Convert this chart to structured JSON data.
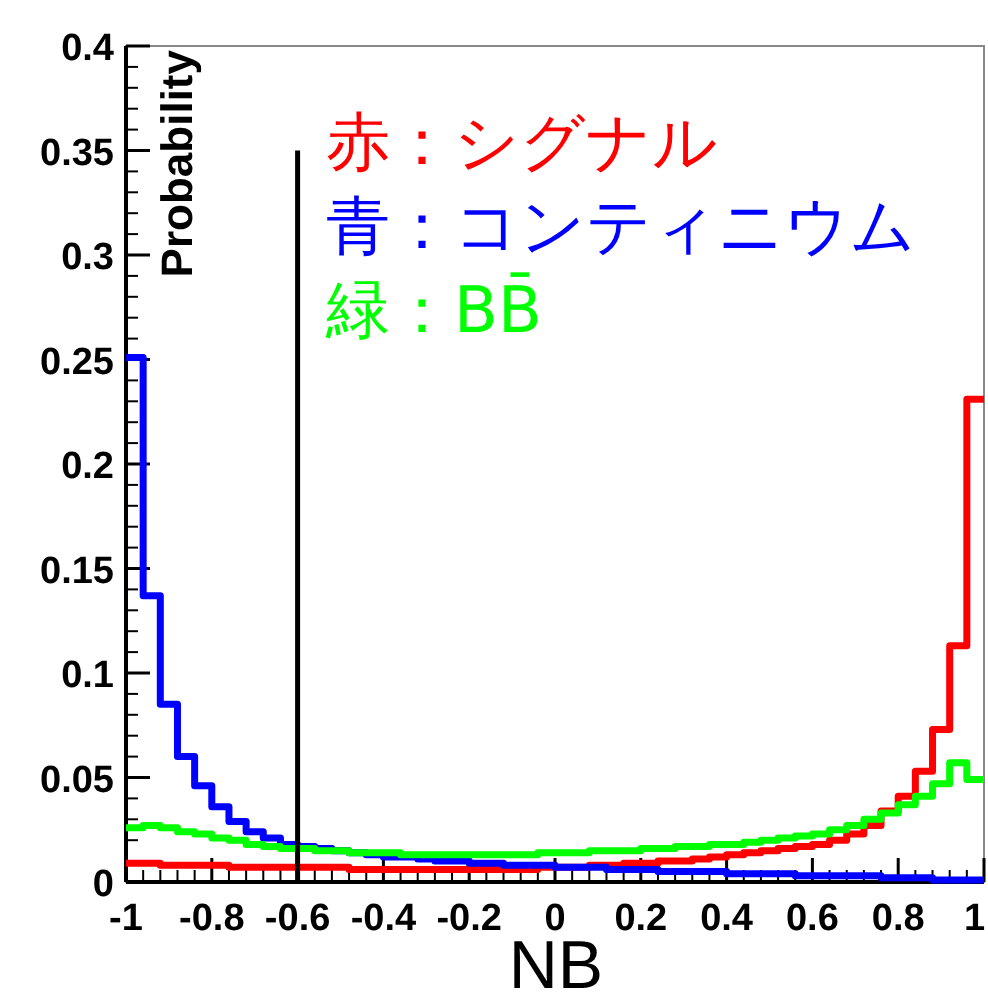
{
  "chart_data": {
    "type": "histogram",
    "xlabel": "NB",
    "ylabel": "Probability",
    "bins": [
      -1,
      -0.96,
      -0.92,
      -0.88,
      -0.84,
      -0.8,
      -0.76,
      -0.72,
      -0.68,
      -0.64,
      -0.6,
      -0.56,
      -0.52,
      -0.48,
      -0.44,
      -0.4,
      -0.36,
      -0.32,
      -0.28,
      -0.24,
      -0.2,
      -0.16,
      -0.12,
      -0.08,
      -0.04,
      0,
      0.04,
      0.08,
      0.12,
      0.16,
      0.2,
      0.24,
      0.28,
      0.32,
      0.36,
      0.4,
      0.44,
      0.48,
      0.52,
      0.56,
      0.6,
      0.64,
      0.68,
      0.72,
      0.76,
      0.8,
      0.84,
      0.88,
      0.92,
      0.96,
      1
    ],
    "series": [
      {
        "name": "赤：シグナル",
        "color": "#ff0000",
        "values": [
          0.009,
          0.009,
          0.008,
          0.008,
          0.008,
          0.008,
          0.007,
          0.007,
          0.007,
          0.007,
          0.007,
          0.007,
          0.007,
          0.006,
          0.006,
          0.006,
          0.006,
          0.006,
          0.006,
          0.006,
          0.006,
          0.006,
          0.006,
          0.006,
          0.007,
          0.007,
          0.007,
          0.008,
          0.008,
          0.009,
          0.009,
          0.01,
          0.01,
          0.011,
          0.012,
          0.013,
          0.014,
          0.015,
          0.016,
          0.017,
          0.018,
          0.02,
          0.023,
          0.027,
          0.034,
          0.041,
          0.053,
          0.073,
          0.113,
          0.231
        ]
      },
      {
        "name": "青：コンティニウム",
        "color": "#0000ff",
        "values": [
          0.251,
          0.137,
          0.085,
          0.06,
          0.046,
          0.036,
          0.029,
          0.024,
          0.021,
          0.018,
          0.017,
          0.016,
          0.015,
          0.014,
          0.013,
          0.012,
          0.012,
          0.011,
          0.01,
          0.01,
          0.009,
          0.009,
          0.008,
          0.008,
          0.008,
          0.007,
          0.007,
          0.007,
          0.006,
          0.006,
          0.006,
          0.005,
          0.005,
          0.005,
          0.005,
          0.004,
          0.004,
          0.004,
          0.004,
          0.003,
          0.003,
          0.003,
          0.003,
          0.003,
          0.002,
          0.002,
          0.002,
          0.001,
          0.001,
          0.001
        ]
      },
      {
        "name": "緑：BB̄",
        "color": "#00ff00",
        "values": [
          0.026,
          0.027,
          0.026,
          0.024,
          0.023,
          0.021,
          0.02,
          0.018,
          0.017,
          0.016,
          0.016,
          0.015,
          0.015,
          0.014,
          0.014,
          0.014,
          0.013,
          0.013,
          0.013,
          0.013,
          0.013,
          0.013,
          0.013,
          0.013,
          0.014,
          0.014,
          0.014,
          0.015,
          0.015,
          0.015,
          0.016,
          0.016,
          0.017,
          0.017,
          0.018,
          0.018,
          0.019,
          0.02,
          0.021,
          0.022,
          0.023,
          0.025,
          0.027,
          0.03,
          0.033,
          0.037,
          0.041,
          0.047,
          0.057,
          0.049
        ]
      }
    ],
    "xlim": [
      -1,
      1
    ],
    "ylim": [
      0,
      0.4
    ],
    "xticks": [
      -1,
      -0.8,
      -0.6,
      -0.4,
      -0.2,
      0,
      0.2,
      0.4,
      0.6,
      0.8,
      1
    ],
    "yticks": [
      0,
      0.05,
      0.1,
      0.15,
      0.2,
      0.25,
      0.3,
      0.35,
      0.4
    ],
    "ref_lines": [
      {
        "axis": "x",
        "value": -0.6,
        "color": "#000000"
      }
    ],
    "legend": "top right"
  }
}
